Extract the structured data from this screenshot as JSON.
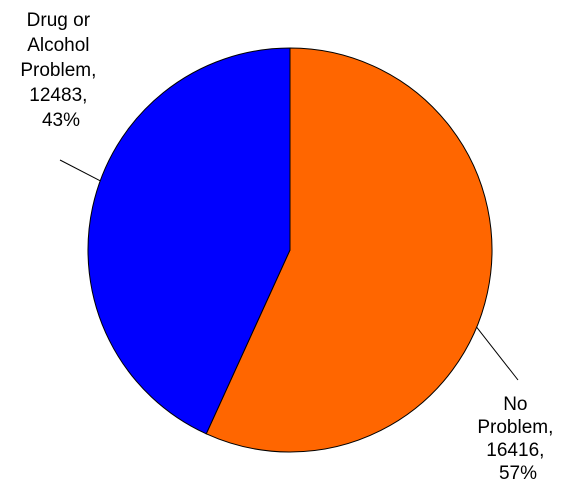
{
  "chart_data": {
    "type": "pie",
    "slices": [
      {
        "name": "No Problem",
        "value": 16416,
        "percent": "57%",
        "color": "#FF6600",
        "label_lines": [
          "No",
          "Problem,",
          "16416,",
          "57%"
        ]
      },
      {
        "name": "Drug or Alcohol Problem",
        "value": 12483,
        "percent": "43%",
        "color": "#0000FF",
        "label_lines": [
          "Drug or",
          "Alcohol",
          "Problem,",
          "12483,",
          "43%"
        ]
      }
    ],
    "start": "12 o'clock",
    "direction": "clockwise",
    "legend": "none",
    "title": ""
  }
}
